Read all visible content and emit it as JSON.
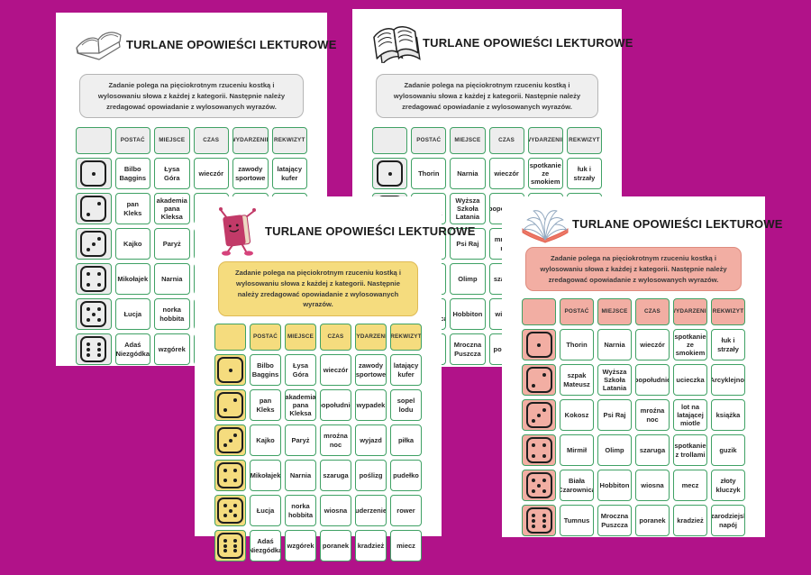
{
  "canvas": {
    "background": "#b11289"
  },
  "theme": {
    "green_border": "#3fa164",
    "gray_fill": "#ededed",
    "gray_note_border": "#b5b5b5",
    "yellow_fill": "#f5dc7e",
    "yellow_note_border": "#dfba55",
    "pink_fill": "#f2aea3",
    "pink_note_border": "#de8b7e",
    "dice_color": "#1e1e1e"
  },
  "shared": {
    "title": "TURLANE OPOWIEŚCI LEKTUROWE",
    "instruction": "Zadanie polega na pięciokrotnym rzuceniu kostką i wylosowaniu słowa z każdej z kategorii. Następnie należy zredagować opowiadanie z wylosowanych wyrazów.",
    "columns": [
      "POSTAĆ",
      "MIEJSCE",
      "CZAS",
      "WYDARZENIE",
      "REKWIZYT"
    ]
  },
  "pages": [
    {
      "id": "top-left",
      "theme": "gray",
      "icon": "sketch-open-book-icon",
      "rows": [
        {
          "dice": 1,
          "cells": [
            "Bilbo Baggins",
            "Łysa Góra",
            "wieczór",
            "zawody sportowe",
            "latający kufer"
          ]
        },
        {
          "dice": 2,
          "cells": [
            "pan Kleks",
            "akademia pana Kleksa",
            "popołudnie",
            "wypadek",
            "sopel lodu"
          ]
        },
        {
          "dice": 3,
          "cells": [
            "Kajko",
            "Paryż",
            "mroźna noc",
            "wyjazd",
            "piłka"
          ]
        },
        {
          "dice": 4,
          "cells": [
            "Mikołajek",
            "Narnia",
            "szaruga",
            "poślizg",
            "pudełko"
          ]
        },
        {
          "dice": 5,
          "cells": [
            "Łucja",
            "norka hobbita",
            "wiosna",
            "uderzenie",
            "rower"
          ]
        },
        {
          "dice": 6,
          "cells": [
            "Adaś Niezgódka",
            "wzgórek",
            "poranek",
            "kradzież",
            "miecz"
          ]
        }
      ]
    },
    {
      "id": "top-right",
      "theme": "gray",
      "icon": "lined-open-book-icon",
      "rows": [
        {
          "dice": 1,
          "cells": [
            "Thorin",
            "Narnia",
            "wieczór",
            "spotkanie ze smokiem",
            "łuk i strzały"
          ]
        },
        {
          "dice": 2,
          "cells": [
            "szpak Mateusz",
            "Wyższa Szkoła Latania",
            "popołudnie",
            "ucieczka",
            "Arcyklejnot"
          ]
        },
        {
          "dice": 3,
          "cells": [
            "Kokosz",
            "Psi Raj",
            "mroźna noc",
            "lot na latającej miotle",
            "książka"
          ]
        },
        {
          "dice": 4,
          "cells": [
            "Mirmił",
            "Olimp",
            "szaruga",
            "spotkanie z trollami",
            "guzik"
          ]
        },
        {
          "dice": 5,
          "cells": [
            "Biała Czarownica",
            "Hobbiton",
            "wiosna",
            "mecz",
            "złoty kluczyk"
          ]
        },
        {
          "dice": 6,
          "cells": [
            "Tumnus",
            "Mroczna Puszcza",
            "poranek",
            "kradzież",
            "czarodziejski napój"
          ]
        }
      ]
    },
    {
      "id": "bottom-center",
      "theme": "yellow",
      "icon": "book-mascot-icon",
      "rows": [
        {
          "dice": 1,
          "cells": [
            "Bilbo Baggins",
            "Łysa Góra",
            "wieczór",
            "zawody sportowe",
            "latający kufer"
          ]
        },
        {
          "dice": 2,
          "cells": [
            "pan Kleks",
            "akademia pana Kleksa",
            "popołudnie",
            "wypadek",
            "sopel lodu"
          ]
        },
        {
          "dice": 3,
          "cells": [
            "Kajko",
            "Paryż",
            "mroźna noc",
            "wyjazd",
            "piłka"
          ]
        },
        {
          "dice": 4,
          "cells": [
            "Mikołajek",
            "Narnia",
            "szaruga",
            "poślizg",
            "pudełko"
          ]
        },
        {
          "dice": 5,
          "cells": [
            "Łucja",
            "norka hobbita",
            "wiosna",
            "uderzenie",
            "rower"
          ]
        },
        {
          "dice": 6,
          "cells": [
            "Adaś Niezgódka",
            "wzgórek",
            "poranek",
            "kradzież",
            "miecz"
          ]
        }
      ]
    },
    {
      "id": "bottom-right",
      "theme": "pink",
      "icon": "red-open-book-icon",
      "rows": [
        {
          "dice": 1,
          "cells": [
            "Thorin",
            "Narnia",
            "wieczór",
            "spotkanie ze smokiem",
            "łuk i strzały"
          ]
        },
        {
          "dice": 2,
          "cells": [
            "szpak Mateusz",
            "Wyższa Szkoła Latania",
            "popołudnie",
            "ucieczka",
            "Arcyklejnot"
          ]
        },
        {
          "dice": 3,
          "cells": [
            "Kokosz",
            "Psi Raj",
            "mroźna noc",
            "lot na latającej miotle",
            "książka"
          ]
        },
        {
          "dice": 4,
          "cells": [
            "Mirmił",
            "Olimp",
            "szaruga",
            "spotkanie z trollami",
            "guzik"
          ]
        },
        {
          "dice": 5,
          "cells": [
            "Biała Czarownica",
            "Hobbiton",
            "wiosna",
            "mecz",
            "złoty kluczyk"
          ]
        },
        {
          "dice": 6,
          "cells": [
            "Tumnus",
            "Mroczna Puszcza",
            "poranek",
            "kradzież",
            "czarodziejski napój"
          ]
        }
      ]
    }
  ]
}
